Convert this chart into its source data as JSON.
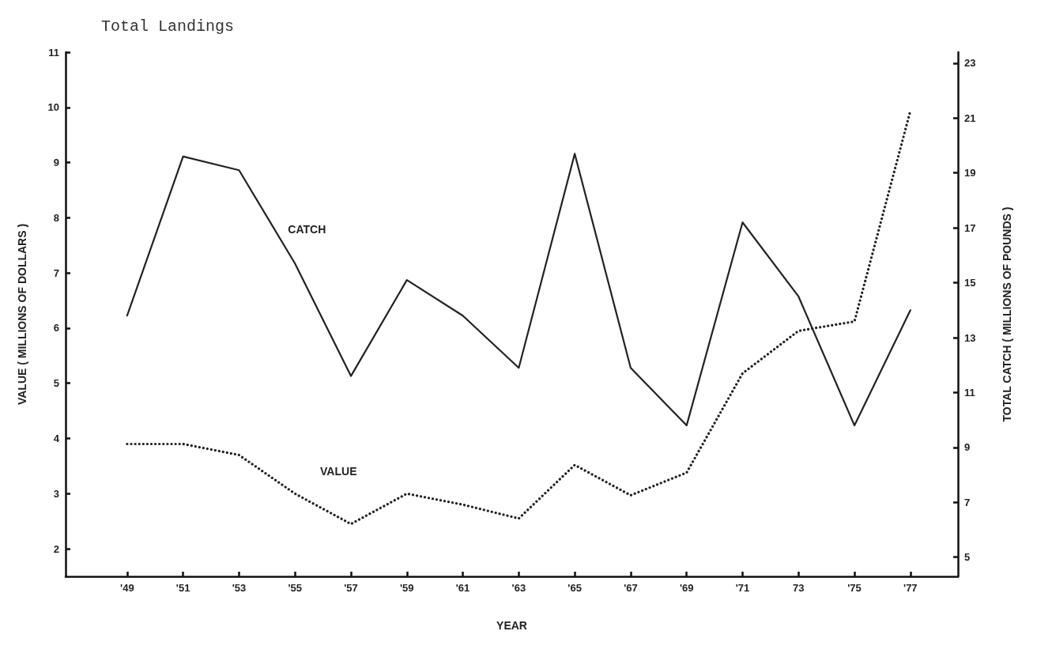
{
  "chart_data": {
    "type": "line",
    "title": "Total Landings",
    "xlabel": "YEAR",
    "ylabel": "VALUE ( MILLIONS OF DOLLARS )",
    "y2label": "TOTAL CATCH ( MILLIONS OF POUNDS )",
    "x": [
      1949,
      1951,
      1953,
      1955,
      1957,
      1959,
      1961,
      1963,
      1965,
      1967,
      1969,
      1971,
      1973,
      1975,
      1977
    ],
    "xlim": [
      1946.8,
      1978.7
    ],
    "xticks": [
      {
        "value": 1949,
        "label": "'49"
      },
      {
        "value": 1951,
        "label": "'51"
      },
      {
        "value": 1953,
        "label": "'53"
      },
      {
        "value": 1955,
        "label": "'55"
      },
      {
        "value": 1957,
        "label": "'57"
      },
      {
        "value": 1959,
        "label": "'59"
      },
      {
        "value": 1961,
        "label": "'61"
      },
      {
        "value": 1963,
        "label": "'63"
      },
      {
        "value": 1965,
        "label": "'65"
      },
      {
        "value": 1967,
        "label": "'67"
      },
      {
        "value": 1969,
        "label": "'69"
      },
      {
        "value": 1971,
        "label": "'71"
      },
      {
        "value": 1973,
        "label": "73"
      },
      {
        "value": 1975,
        "label": "'75"
      },
      {
        "value": 1977,
        "label": "'77"
      }
    ],
    "ylim": [
      1.5,
      11
    ],
    "yticks": [
      2,
      3,
      4,
      5,
      6,
      7,
      8,
      9,
      10,
      11
    ],
    "y2lim": [
      4.3,
      23.4
    ],
    "y2ticks": [
      5,
      7,
      9,
      11,
      13,
      15,
      17,
      19,
      21,
      23
    ],
    "grid": false,
    "legend": false,
    "marker": "none",
    "series": [
      {
        "name": "CATCH",
        "color": "#222222",
        "axis": "y2",
        "line_style": "solid",
        "values": [
          13.8,
          19.6,
          19.1,
          15.7,
          11.6,
          15.1,
          13.8,
          11.9,
          19.7,
          11.9,
          9.8,
          17.2,
          14.5,
          9.8,
          14.0
        ]
      },
      {
        "name": "VALUE",
        "color": "#222222",
        "axis": "y",
        "line_style": "dotted",
        "values": [
          3.9,
          3.9,
          3.7,
          3.0,
          2.45,
          3.0,
          2.8,
          2.55,
          3.52,
          2.97,
          3.38,
          5.18,
          5.95,
          6.12,
          9.94
        ]
      }
    ]
  }
}
